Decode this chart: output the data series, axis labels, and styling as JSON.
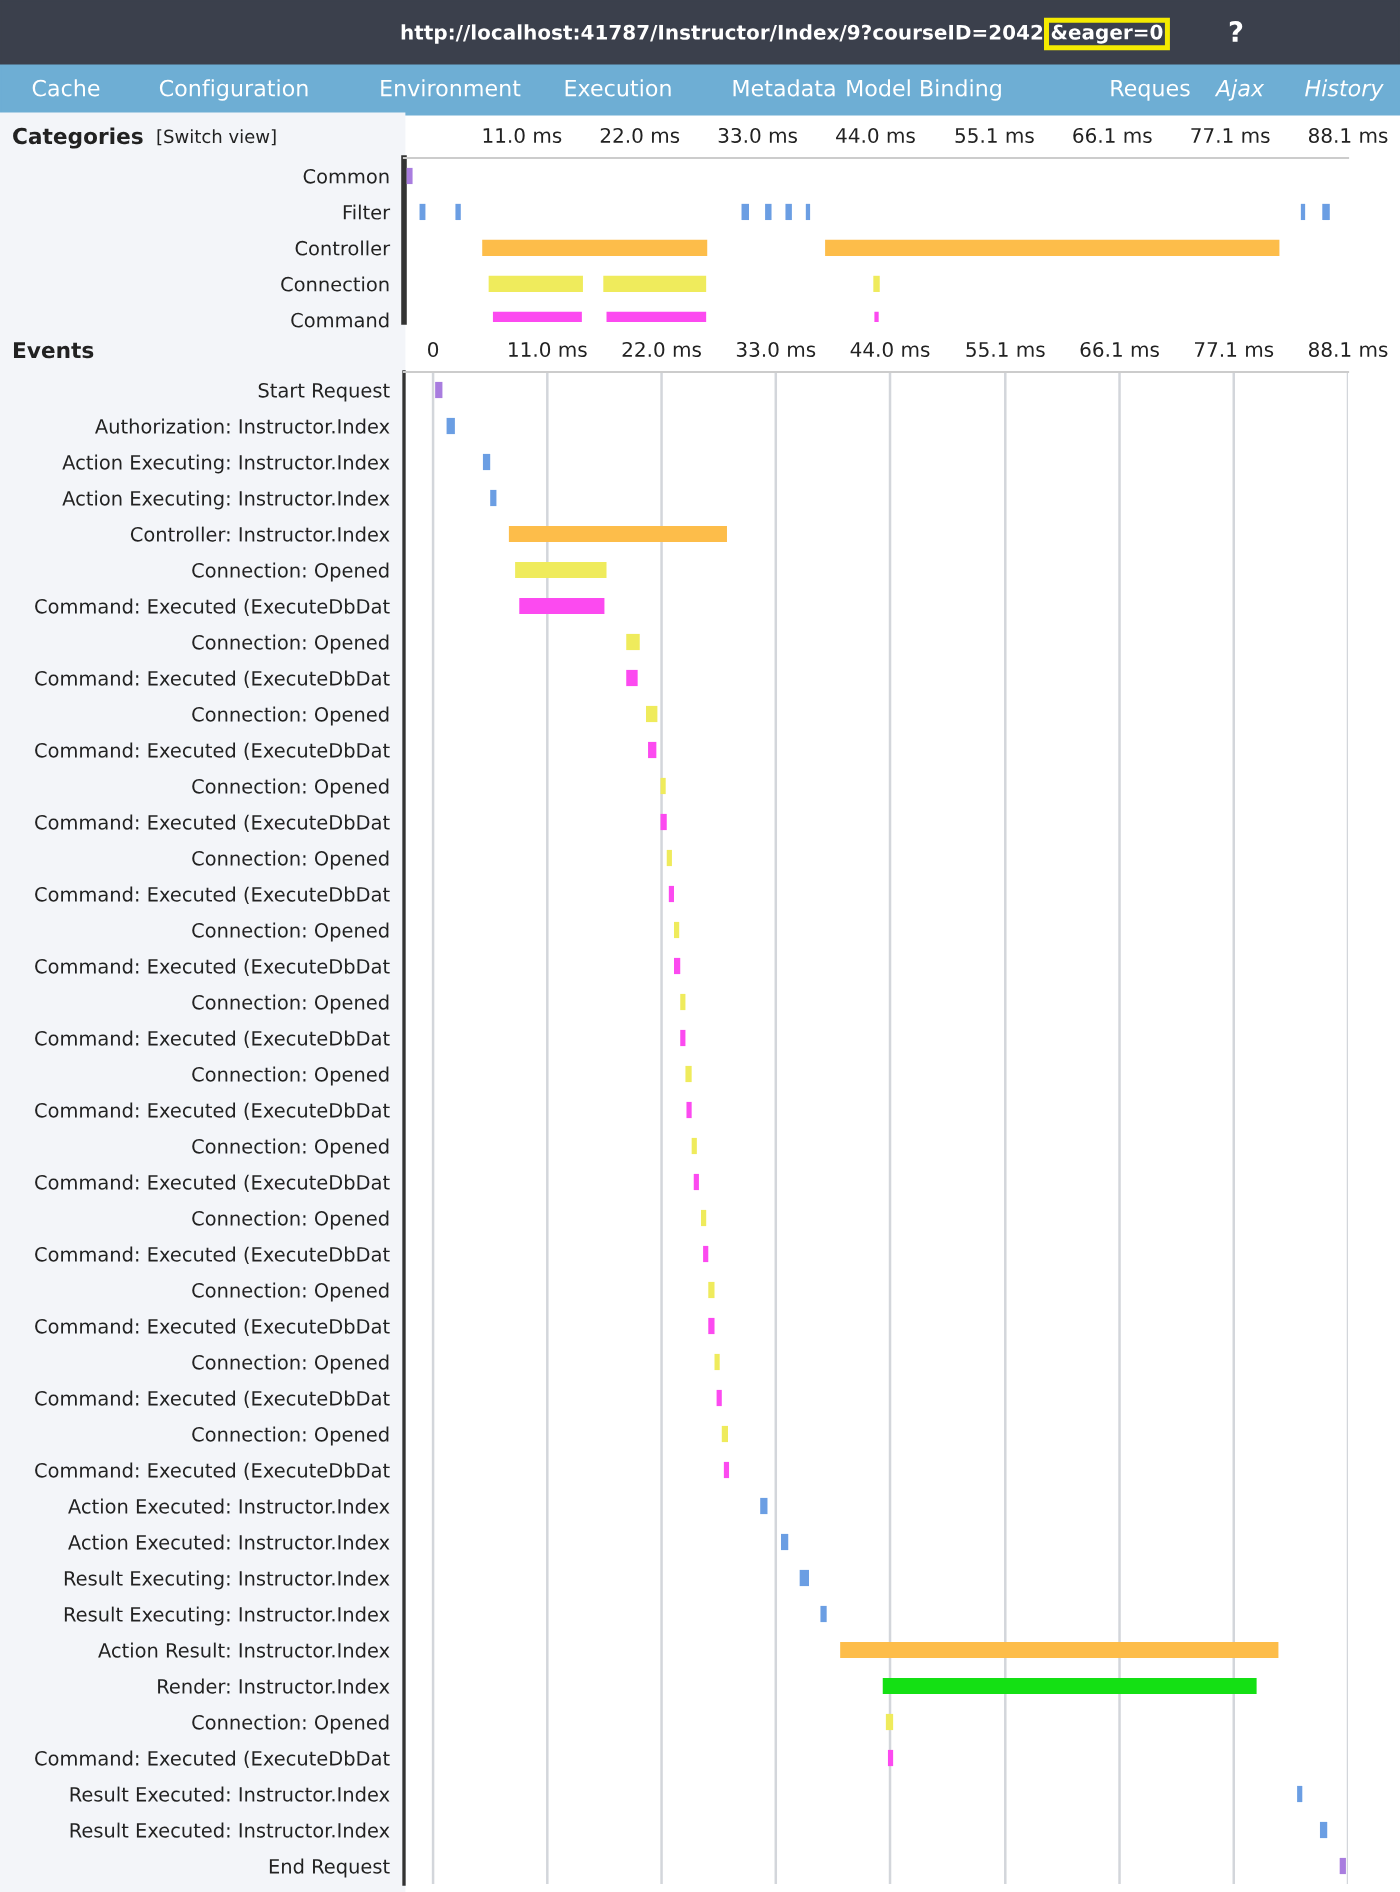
{
  "chart_data": [
    {
      "type": "bar",
      "orientation": "horizontal",
      "title": "http://localhost:41787/Instructor/Index/9?courseID=2042",
      "ylabel": "Categories",
      "annotations": [
        "&eager=0",
        "?",
        "Cache",
        "Configuration",
        "Environment",
        "Execution",
        "Metadata",
        "Model Binding",
        "Reques",
        "Ajax",
        "History",
        "[Switch view]"
      ],
      "categories": [
        "Common",
        "Filter",
        "Controller",
        "Connection",
        "Command"
      ],
      "series": [
        {
          "base": [
            0.25,
            1.45,
            7.3,
            7.9,
            8.3
          ],
          "values": [
            0.55,
            0.55,
            21.0,
            8.8,
            8.3
          ],
          "colors": [
            "#a97ddf",
            "#6b9ee3",
            "#fdbd4a",
            "#efeb5c",
            "#fc4af0"
          ]
        },
        {
          "base": [
            null,
            4.8,
            39.3,
            18.6,
            18.9
          ],
          "values": [
            null,
            0.5,
            42.4,
            9.6,
            9.3
          ],
          "colors": [
            "#a97ddf",
            "#6b9ee3",
            "#fdbd4a",
            "#efeb5c",
            "#fc4af0"
          ]
        },
        {
          "base": [
            null,
            31.5,
            null,
            43.8,
            43.9
          ],
          "values": [
            null,
            0.7,
            null,
            0.6,
            0.4
          ],
          "colors": [
            "#a97ddf",
            "#6b9ee3",
            "#fdbd4a",
            "#efeb5c",
            "#fc4af0"
          ]
        },
        {
          "base": [
            null,
            33.7,
            null,
            null,
            null
          ],
          "values": [
            null,
            0.6,
            null,
            null,
            null
          ],
          "colors": [
            "#a97ddf",
            "#6b9ee3",
            "#fdbd4a",
            "#efeb5c",
            "#fc4af0"
          ]
        },
        {
          "base": [
            null,
            35.6,
            null,
            null,
            null
          ],
          "values": [
            null,
            0.6,
            null,
            null,
            null
          ],
          "colors": [
            "#a97ddf",
            "#6b9ee3",
            "#fdbd4a",
            "#efeb5c",
            "#fc4af0"
          ]
        },
        {
          "base": [
            null,
            37.5,
            null,
            null,
            null
          ],
          "values": [
            null,
            0.4,
            null,
            null,
            null
          ],
          "colors": [
            "#a97ddf",
            "#6b9ee3",
            "#fdbd4a",
            "#efeb5c",
            "#fc4af0"
          ]
        },
        {
          "base": [
            null,
            83.7,
            null,
            null,
            null
          ],
          "values": [
            null,
            0.4,
            null,
            null,
            null
          ],
          "colors": [
            "#a97ddf",
            "#6b9ee3",
            "#fdbd4a",
            "#efeb5c",
            "#fc4af0"
          ]
        },
        {
          "base": [
            null,
            85.7,
            null,
            null,
            null
          ],
          "values": [
            null,
            0.7,
            null,
            null,
            null
          ],
          "colors": [
            "#a97ddf",
            "#6b9ee3",
            "#fdbd4a",
            "#efeb5c",
            "#fc4af0"
          ]
        }
      ],
      "xlim": [
        0,
        88.1
      ],
      "xticks": [
        {
          "value": 11.0,
          "label": "11.0 ms"
        },
        {
          "value": 22.0,
          "label": "22.0 ms"
        },
        {
          "value": 33.0,
          "label": "33.0 ms"
        },
        {
          "value": 44.0,
          "label": "44.0 ms"
        },
        {
          "value": 55.1,
          "label": "55.1 ms"
        },
        {
          "value": 66.1,
          "label": "66.1 ms"
        },
        {
          "value": 77.1,
          "label": "77.1 ms"
        },
        {
          "value": 88.1,
          "label": "88.1 ms"
        }
      ]
    },
    {
      "type": "bar",
      "orientation": "horizontal",
      "ylabel": "Events",
      "grid": "x",
      "categories": [
        "Start Request",
        "Authorization: Instructor.Index",
        "Action Executing: Instructor.Index",
        "Action Executing: Instructor.Index",
        "Controller: Instructor.Index",
        "Connection: Opened",
        "Command: Executed (ExecuteDbDat",
        "Connection: Opened",
        "Command: Executed (ExecuteDbDat",
        "Connection: Opened",
        "Command: Executed (ExecuteDbDat",
        "Connection: Opened",
        "Command: Executed (ExecuteDbDat",
        "Connection: Opened",
        "Command: Executed (ExecuteDbDat",
        "Connection: Opened",
        "Command: Executed (ExecuteDbDat",
        "Connection: Opened",
        "Command: Executed (ExecuteDbDat",
        "Connection: Opened",
        "Command: Executed (ExecuteDbDat",
        "Connection: Opened",
        "Command: Executed (ExecuteDbDat",
        "Connection: Opened",
        "Command: Executed (ExecuteDbDat",
        "Connection: Opened",
        "Command: Executed (ExecuteDbDat",
        "Connection: Opened",
        "Command: Executed (ExecuteDbDat",
        "Connection: Opened",
        "Command: Executed (ExecuteDbDat",
        "Action Executed: Instructor.Index",
        "Action Executed: Instructor.Index",
        "Result Executing: Instructor.Index",
        "Result Executing: Instructor.Index",
        "Action Result: Instructor.Index",
        "Render: Instructor.Index",
        "Connection: Opened",
        "Command: Executed (ExecuteDbDat",
        "Result Executed: Instructor.Index",
        "Result Executed: Instructor.Index",
        "End Request"
      ],
      "base": [
        0.2,
        1.3,
        4.8,
        5.5,
        7.3,
        7.9,
        8.3,
        18.6,
        18.6,
        20.5,
        20.7,
        21.9,
        21.9,
        22.5,
        22.7,
        23.2,
        23.2,
        23.8,
        23.8,
        24.3,
        24.4,
        24.9,
        25.1,
        25.8,
        26.0,
        26.5,
        26.5,
        27.1,
        27.3,
        27.8,
        28.0,
        31.5,
        33.5,
        35.3,
        37.3,
        39.2,
        43.3,
        43.6,
        43.8,
        83.2,
        85.4,
        87.3
      ],
      "values": [
        0.7,
        0.8,
        0.7,
        0.6,
        21.0,
        8.8,
        8.2,
        1.3,
        1.1,
        1.1,
        0.8,
        0.5,
        0.6,
        0.5,
        0.5,
        0.5,
        0.6,
        0.5,
        0.5,
        0.6,
        0.5,
        0.5,
        0.5,
        0.5,
        0.5,
        0.6,
        0.6,
        0.5,
        0.5,
        0.6,
        0.5,
        0.7,
        0.7,
        0.9,
        0.6,
        42.2,
        36.0,
        0.7,
        0.5,
        0.5,
        0.7,
        0.6
      ],
      "colors": [
        "#a97ddf",
        "#6b9ee3",
        "#6b9ee3",
        "#6b9ee3",
        "#fdbd4a",
        "#efeb5c",
        "#fc4af0",
        "#efeb5c",
        "#fc4af0",
        "#efeb5c",
        "#fc4af0",
        "#efeb5c",
        "#fc4af0",
        "#efeb5c",
        "#fc4af0",
        "#efeb5c",
        "#fc4af0",
        "#efeb5c",
        "#fc4af0",
        "#efeb5c",
        "#fc4af0",
        "#efeb5c",
        "#fc4af0",
        "#efeb5c",
        "#fc4af0",
        "#efeb5c",
        "#fc4af0",
        "#efeb5c",
        "#fc4af0",
        "#efeb5c",
        "#fc4af0",
        "#6b9ee3",
        "#6b9ee3",
        "#6b9ee3",
        "#6b9ee3",
        "#fdbd4a",
        "#14e014",
        "#efeb5c",
        "#fc4af0",
        "#6b9ee3",
        "#6b9ee3",
        "#a97ddf"
      ],
      "xlim": [
        -2.8,
        88.1
      ],
      "xticks": [
        0,
        {
          "value": 11.0,
          "label": "11.0 ms"
        },
        {
          "value": 22.0,
          "label": "22.0 ms"
        },
        {
          "value": 33.0,
          "label": "33.0 ms"
        },
        {
          "value": 44.0,
          "label": "44.0 ms"
        },
        {
          "value": 55.1,
          "label": "55.1 ms"
        },
        {
          "value": 66.1,
          "label": "66.1 ms"
        },
        {
          "value": 77.1,
          "label": "77.1 ms"
        },
        {
          "value": 88.1,
          "label": "88.1 ms"
        }
      ]
    }
  ]
}
